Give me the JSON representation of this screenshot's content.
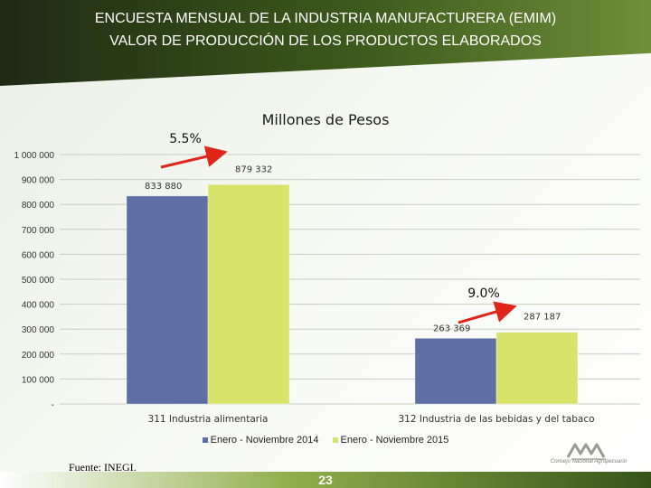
{
  "header": {
    "title_line1": "ENCUESTA MENSUAL DE LA INDUSTRIA MANUFACTURERA (EMIM)",
    "title_line2": "VALOR DE PRODUCCIÓN DE LOS PRODUCTOS ELABORADOS"
  },
  "colors": {
    "series_2014": "#5e6fa6",
    "series_2015": "#d8e36a",
    "arrow": "#e0251b",
    "header_dark": "#2b3d17"
  },
  "chart_data": {
    "type": "bar",
    "title": "Millones de Pesos",
    "categories": [
      "311 Industria alimentaria",
      "312 Industria de las bebidas y del tabaco"
    ],
    "series": [
      {
        "name": "Enero - Noviembre 2014",
        "values": [
          833880,
          263369
        ],
        "labels": [
          "833 880",
          "263 369"
        ]
      },
      {
        "name": "Enero - Noviembre 2015",
        "values": [
          879332,
          287187
        ],
        "labels": [
          "879 332",
          "287 187"
        ]
      }
    ],
    "ylim": [
      0,
      1000000
    ],
    "yticks": [
      {
        "value": 1000000,
        "label": "1 000 000"
      },
      {
        "value": 900000,
        "label": "900 000"
      },
      {
        "value": 800000,
        "label": "800 000"
      },
      {
        "value": 700000,
        "label": "700 000"
      },
      {
        "value": 600000,
        "label": "600 000"
      },
      {
        "value": 500000,
        "label": "500 000"
      },
      {
        "value": 400000,
        "label": "400 000"
      },
      {
        "value": 300000,
        "label": "300 000"
      },
      {
        "value": 200000,
        "label": "200 000"
      },
      {
        "value": 100000,
        "label": "100 000"
      },
      {
        "value": 0,
        "label": "-"
      }
    ],
    "grid": true,
    "legend_position": "bottom",
    "annotations": [
      "5.5%",
      "9.0%"
    ]
  },
  "source": "Fuente: INEGI.",
  "page_number": "23",
  "logo_text": "Consejo Nacional Agropecuario"
}
